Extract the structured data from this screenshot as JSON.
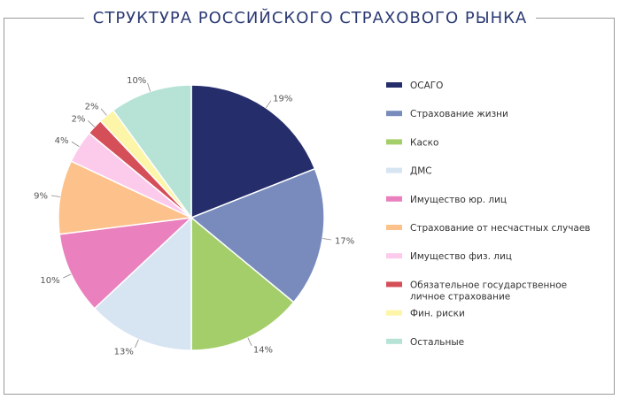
{
  "title": "СТРУКТУРА РОССИЙСКОГО СТРАХОВОГО РЫНКА",
  "chart_data": {
    "type": "pie",
    "title": "СТРУКТУРА РОССИЙСКОГО СТРАХОВОГО РЫНКА",
    "legend_position": "right",
    "slices": [
      {
        "name": "ОСАГО",
        "value": 19,
        "label": "19%",
        "color": "#252e6b"
      },
      {
        "name": "Страхование жизни",
        "value": 17,
        "label": "17%",
        "color": "#788bbc"
      },
      {
        "name": "Каско",
        "value": 14,
        "label": "14%",
        "color": "#a3ce6a"
      },
      {
        "name": "ДМС",
        "value": 13,
        "label": "13%",
        "color": "#d7e4f2"
      },
      {
        "name": "Имущество юр. лиц",
        "value": 10,
        "label": "10%",
        "color": "#ea80bd"
      },
      {
        "name": "Страхование от несчастных случаев",
        "value": 9,
        "label": "9%",
        "color": "#fdc28c"
      },
      {
        "name": "Имущество физ. лиц",
        "value": 4,
        "label": "4%",
        "color": "#fccbec"
      },
      {
        "name": "Обязательное государственное личное страхование",
        "value": 2,
        "label": "2%",
        "color": "#d44f58"
      },
      {
        "name": "Фин. риски",
        "value": 2,
        "label": "2%",
        "color": "#fdf5a7"
      },
      {
        "name": "Остальные",
        "value": 10,
        "label": "10%",
        "color": "#b6e3d5"
      }
    ]
  }
}
